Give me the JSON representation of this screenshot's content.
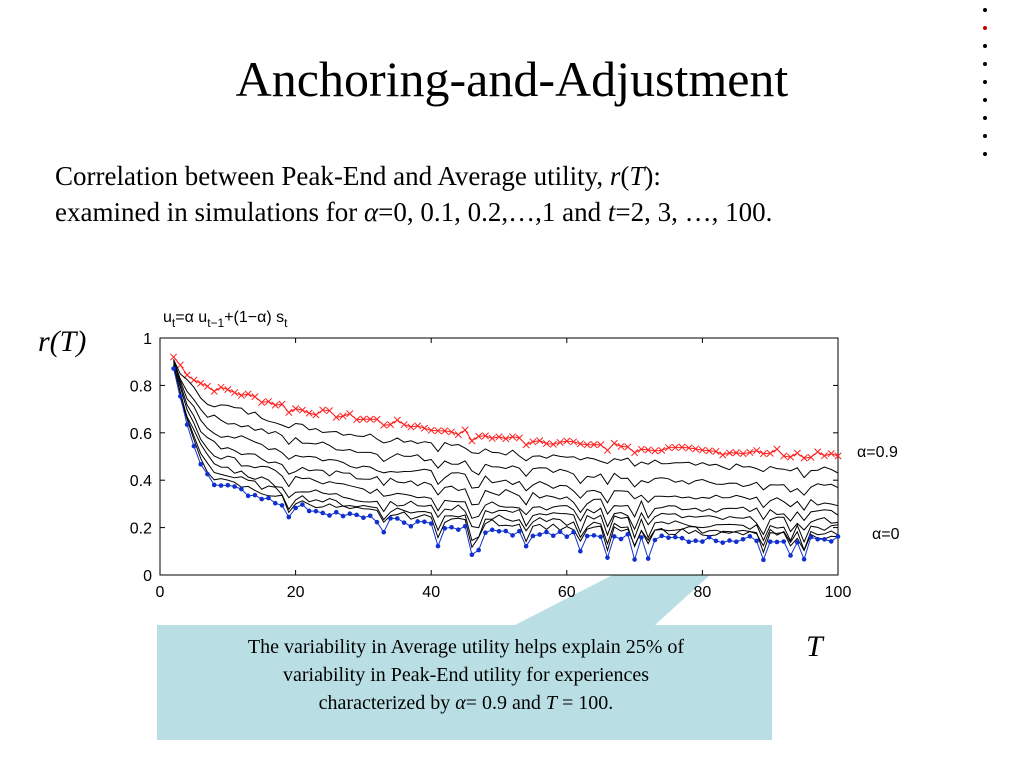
{
  "slide": {
    "title": "Anchoring-and-Adjustment",
    "subtitle_line1_a": "Correlation between Peak-End and Average utility, ",
    "subtitle_line1_r": "r",
    "subtitle_line1_b": "(",
    "subtitle_line1_T": "T",
    "subtitle_line1_c": "):",
    "subtitle_line2_a": "examined in simulations for ",
    "subtitle_line2_alpha": "α",
    "subtitle_line2_b": "=0, 0.1, 0.2,…,1 and ",
    "subtitle_line2_t": "t",
    "subtitle_line2_c": "=2, 3, …, 100.",
    "y_label": "r(T)",
    "x_label": "T",
    "callout_line1": "The variability in Average utility helps explain 25% of",
    "callout_line2": "variability in Peak-End utility for experiences",
    "callout_line3_a": "characterized by ",
    "callout_line3_alpha": "α",
    "callout_line3_b": "= 0.9 and ",
    "callout_line3_T": "T",
    "callout_line3_c": " = 100.",
    "callout_color": "#b9dfe4",
    "nav_dots_count": 9,
    "nav_dots_active": 2
  },
  "chart_data": {
    "type": "line",
    "title_formula": "u_t=α u_{t-1}+(1-α) s_t",
    "xlim": [
      0,
      100
    ],
    "ylim": [
      0,
      1
    ],
    "xticks": [
      0,
      20,
      40,
      60,
      80,
      100
    ],
    "yticks": [
      0,
      0.2,
      0.4,
      0.6,
      0.8,
      1
    ],
    "ytick_labels": [
      "0",
      "0.2",
      "0.4",
      "0.6",
      "0.8",
      "1"
    ],
    "annotations": [
      "α=0.9",
      "α=0"
    ],
    "colors": {
      "top": "#ff2020",
      "bottom": "#1030d0",
      "middle": "#000000"
    },
    "series": [
      {
        "alpha": 0.9,
        "marker": "x",
        "x": [
          2,
          10,
          20,
          30,
          40,
          50,
          60,
          70,
          80,
          90,
          100
        ],
        "y": [
          0.92,
          0.78,
          0.7,
          0.66,
          0.62,
          0.58,
          0.56,
          0.54,
          0.52,
          0.52,
          0.5
        ]
      },
      {
        "alpha": 0.8,
        "x": [
          2,
          10,
          20,
          30,
          40,
          50,
          60,
          70,
          80,
          90,
          100
        ],
        "y": [
          0.91,
          0.71,
          0.63,
          0.59,
          0.56,
          0.52,
          0.5,
          0.48,
          0.46,
          0.45,
          0.44
        ]
      },
      {
        "alpha": 0.7,
        "x": [
          2,
          10,
          20,
          30,
          40,
          50,
          60,
          70,
          80,
          90,
          100
        ],
        "y": [
          0.9,
          0.65,
          0.57,
          0.52,
          0.49,
          0.46,
          0.43,
          0.41,
          0.39,
          0.38,
          0.37
        ]
      },
      {
        "alpha": 0.6,
        "x": [
          2,
          10,
          20,
          30,
          40,
          50,
          60,
          70,
          80,
          90,
          100
        ],
        "y": [
          0.9,
          0.59,
          0.51,
          0.46,
          0.43,
          0.4,
          0.37,
          0.35,
          0.33,
          0.32,
          0.3
        ]
      },
      {
        "alpha": 0.5,
        "x": [
          2,
          10,
          20,
          30,
          40,
          50,
          60,
          70,
          80,
          90,
          100
        ],
        "y": [
          0.89,
          0.54,
          0.45,
          0.41,
          0.38,
          0.35,
          0.32,
          0.3,
          0.28,
          0.27,
          0.26
        ]
      },
      {
        "alpha": 0.4,
        "x": [
          2,
          10,
          20,
          30,
          40,
          50,
          60,
          70,
          80,
          90,
          100
        ],
        "y": [
          0.89,
          0.49,
          0.41,
          0.36,
          0.33,
          0.3,
          0.28,
          0.26,
          0.24,
          0.23,
          0.23
        ]
      },
      {
        "alpha": 0.3,
        "x": [
          2,
          10,
          20,
          30,
          40,
          50,
          60,
          70,
          80,
          90,
          100
        ],
        "y": [
          0.88,
          0.45,
          0.36,
          0.32,
          0.29,
          0.27,
          0.25,
          0.23,
          0.21,
          0.2,
          0.2
        ]
      },
      {
        "alpha": 0.2,
        "x": [
          2,
          10,
          20,
          30,
          40,
          50,
          60,
          70,
          80,
          90,
          100
        ],
        "y": [
          0.88,
          0.42,
          0.33,
          0.29,
          0.26,
          0.24,
          0.22,
          0.2,
          0.19,
          0.18,
          0.18
        ]
      },
      {
        "alpha": 0.1,
        "x": [
          2,
          10,
          20,
          30,
          40,
          50,
          60,
          70,
          80,
          90,
          100
        ],
        "y": [
          0.87,
          0.39,
          0.31,
          0.27,
          0.24,
          0.22,
          0.2,
          0.19,
          0.18,
          0.17,
          0.16
        ]
      },
      {
        "alpha": 0.0,
        "marker": "dot",
        "x": [
          2,
          10,
          20,
          30,
          40,
          50,
          60,
          70,
          80,
          90,
          100
        ],
        "y": [
          0.87,
          0.37,
          0.29,
          0.24,
          0.21,
          0.18,
          0.17,
          0.16,
          0.15,
          0.15,
          0.15
        ]
      }
    ]
  }
}
